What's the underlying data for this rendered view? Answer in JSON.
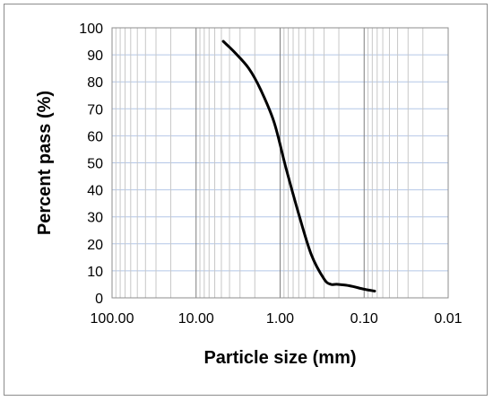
{
  "chart_data": {
    "type": "line",
    "title": "",
    "xlabel": "Particle size (mm)",
    "ylabel": "Percent pass (%)",
    "x_scale": "log",
    "x_reversed": true,
    "xlim": [
      100,
      0.01
    ],
    "ylim": [
      0,
      100
    ],
    "x_ticks": [
      100,
      10,
      1,
      0.1,
      0.01
    ],
    "x_tick_labels": [
      "100.00",
      "10.00",
      "1.00",
      "0.10",
      "0.01"
    ],
    "y_ticks": [
      0,
      10,
      20,
      30,
      40,
      50,
      60,
      70,
      80,
      90,
      100
    ],
    "y_tick_labels": [
      "0",
      "10",
      "20",
      "30",
      "40",
      "50",
      "60",
      "70",
      "80",
      "90",
      "100"
    ],
    "grid": true,
    "legend": "none",
    "series": [
      {
        "color": "#000000",
        "x": [
          4.75,
          3.5,
          2.36,
          1.7,
          1.18,
          0.85,
          0.6,
          0.425,
          0.3,
          0.25,
          0.212,
          0.15,
          0.1,
          0.075
        ],
        "y": [
          95,
          91,
          85,
          77,
          65,
          48,
          31,
          16,
          7,
          5,
          5,
          4.5,
          3.2,
          2.5
        ]
      }
    ]
  }
}
